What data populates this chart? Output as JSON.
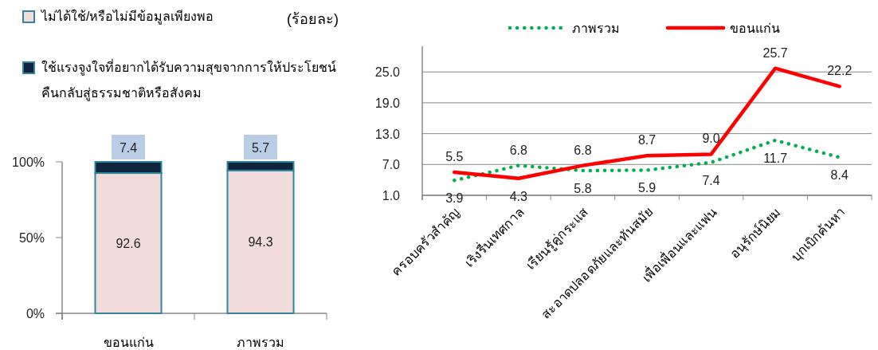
{
  "chart_data": [
    {
      "type": "bar",
      "stacked": true,
      "categories": [
        "ขอนแก่น",
        "ภาพรวม"
      ],
      "series": [
        {
          "name": "ไม่ได้ใช้/หรือไม่มีข้อมูลเพียงพอ",
          "color": "#f2dcdb",
          "values": [
            92.6,
            94.3
          ]
        },
        {
          "name": "ใช้แรงจูงใจที่อยากได้รับความสุขจากการให้ประโยชน์คืนกลับสู่ธรรมชาติหรือสังคม",
          "color": "#10243e",
          "values": [
            7.4,
            5.7
          ]
        }
      ],
      "ylim": [
        0,
        100
      ],
      "yticks": [
        {
          "value": 0,
          "label": "0%"
        },
        {
          "value": 50,
          "label": "50%"
        },
        {
          "value": 100,
          "label": "100%"
        }
      ],
      "data_labels": true,
      "legend": "top left",
      "annotations": [
        "(ร้อยละ)"
      ]
    },
    {
      "type": "line",
      "categories": [
        "ครอบครัวสำคัญ",
        "เริงรื่นเทศกาล",
        "เรียนรู้คู่กระแส",
        "สะอาดปลอดภัยและทันสมัย",
        "เพื่อเพื่อนและแฟน",
        "อนุรักษ์นิยม",
        "บุกเบิกค้นหา"
      ],
      "series": [
        {
          "name": "ภาพรวม",
          "color": "#00b050",
          "line_style": "dotted",
          "values": [
            3.9,
            6.8,
            5.8,
            5.9,
            7.4,
            11.7,
            8.4
          ],
          "value_labels": [
            "3.9",
            "6.8",
            "5.8",
            "5.9",
            "7.4",
            "11.7",
            "8.4"
          ]
        },
        {
          "name": "ขอนแก่น",
          "color": "#ff0000",
          "line_style": "solid",
          "values": [
            5.5,
            4.3,
            6.8,
            8.7,
            9.0,
            25.7,
            22.2
          ],
          "value_labels": [
            "5.5",
            "4.3",
            "6.8",
            "8.7",
            "9.0",
            "25.7",
            "22.2"
          ]
        }
      ],
      "ylim": [
        1,
        30
      ],
      "yticks": [
        {
          "value": 1,
          "label": "1.0"
        },
        {
          "value": 7,
          "label": "7.0"
        },
        {
          "value": 13,
          "label": "13.0"
        },
        {
          "value": 19,
          "label": "19.0"
        },
        {
          "value": 25,
          "label": "25.0"
        }
      ],
      "grid": "y",
      "legend": "top"
    }
  ]
}
